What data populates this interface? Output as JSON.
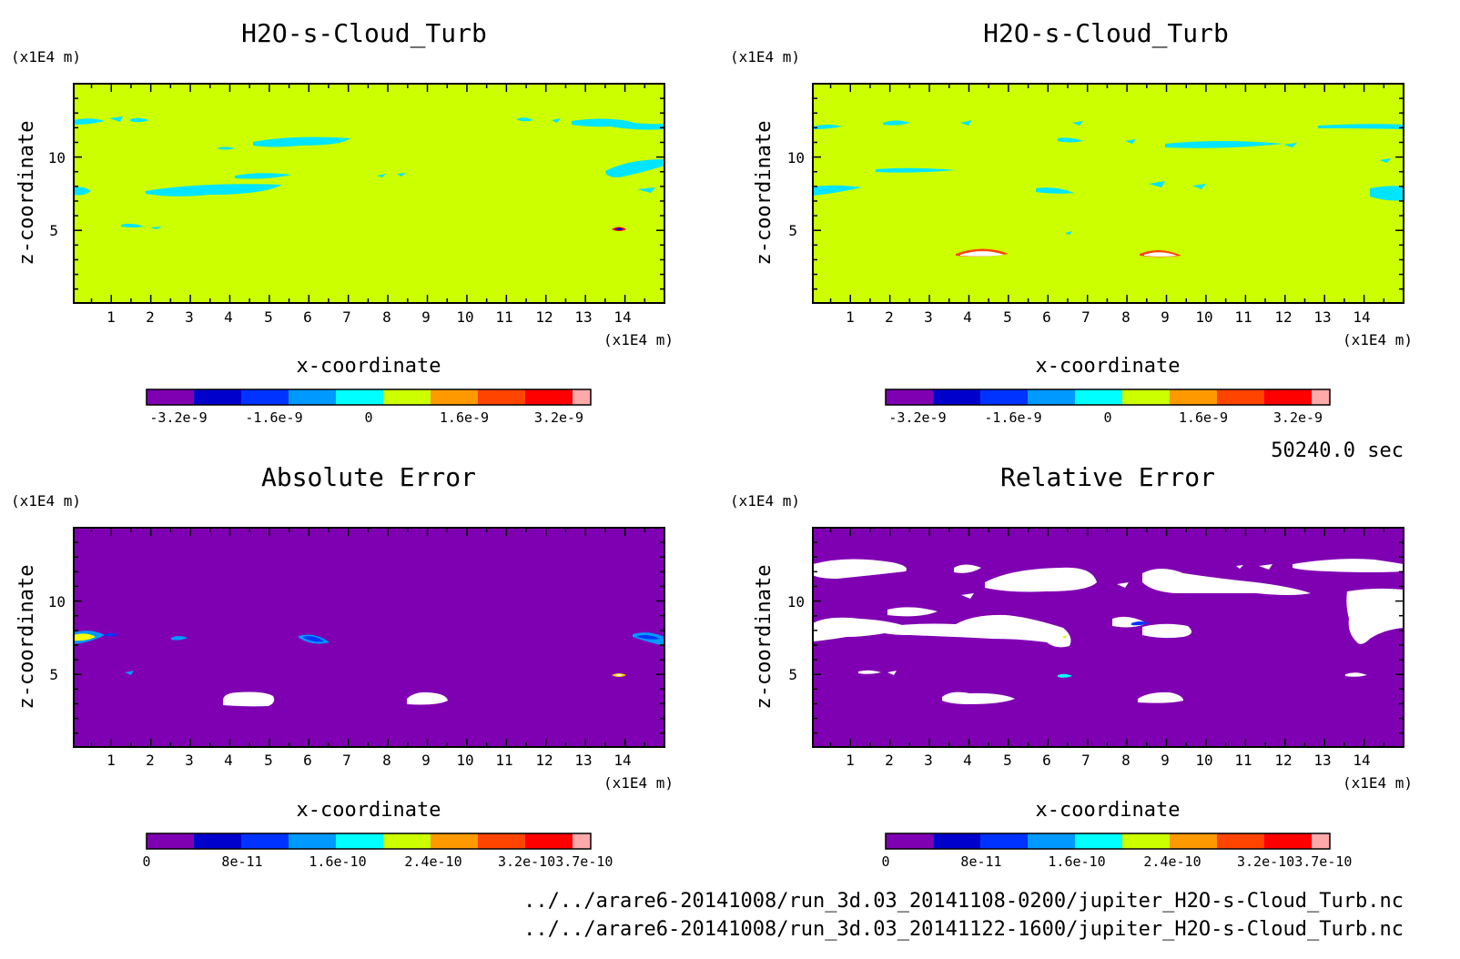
{
  "colorbar_colors": [
    "#7f00b2",
    "#0000cc",
    "#0033ff",
    "#0099ff",
    "#00ffff",
    "#ccff00",
    "#ff9900",
    "#ff4400",
    "#ff0000",
    "#ffaaaa"
  ],
  "field_color": "#ccff00",
  "error_background": "#7f00b2",
  "time_label": "50240.0 sec",
  "footer": {
    "line1": "../../arare6-20141008/run_3d.03_20141108-0200/jupiter_H2O-s-Cloud_Turb.nc",
    "line2": "../../arare6-20141008/run_3d.03_20141122-1600/jupiter_H2O-s-Cloud_Turb.nc"
  },
  "chart_data": [
    {
      "type": "heatmap",
      "title": "H2O-s-Cloud_Turb",
      "xlabel": "x-coordinate",
      "ylabel": "z-coordinate",
      "x_unit": "(x1E4 m)",
      "y_unit": "(x1E4 m)",
      "xlim": [
        0.05,
        15.0
      ],
      "ylim": [
        0.05,
        15.0
      ],
      "x_ticks": [
        "1",
        "2",
        "3",
        "4",
        "5",
        "6",
        "7",
        "8",
        "9",
        "10",
        "11",
        "12",
        "13",
        "14"
      ],
      "y_ticks": [
        "5",
        "10"
      ],
      "colorbar_ticks": [
        "-3.2e-9",
        "-1.6e-9",
        "0",
        "1.6e-9",
        "3.2e-9"
      ],
      "colorbar_range": [
        -4e-09,
        4.4e-09
      ]
    },
    {
      "type": "heatmap",
      "title": "H2O-s-Cloud_Turb",
      "xlabel": "x-coordinate",
      "ylabel": "z-coordinate",
      "x_unit": "(x1E4 m)",
      "y_unit": "(x1E4 m)",
      "xlim": [
        0.05,
        15.0
      ],
      "ylim": [
        0.05,
        15.0
      ],
      "x_ticks": [
        "1",
        "2",
        "3",
        "4",
        "5",
        "6",
        "7",
        "8",
        "9",
        "10",
        "11",
        "12",
        "13",
        "14"
      ],
      "y_ticks": [
        "5",
        "10"
      ],
      "colorbar_ticks": [
        "-3.2e-9",
        "-1.6e-9",
        "0",
        "1.6e-9",
        "3.2e-9"
      ],
      "colorbar_range": [
        -4e-09,
        4.4e-09
      ]
    },
    {
      "type": "heatmap",
      "title": "Absolute Error",
      "xlabel": "x-coordinate",
      "ylabel": "z-coordinate",
      "x_unit": "(x1E4 m)",
      "y_unit": "(x1E4 m)",
      "xlim": [
        0.05,
        15.0
      ],
      "ylim": [
        0.05,
        15.0
      ],
      "x_ticks": [
        "1",
        "2",
        "3",
        "4",
        "5",
        "6",
        "7",
        "8",
        "9",
        "10",
        "11",
        "12",
        "13",
        "14"
      ],
      "y_ticks": [
        "5",
        "10"
      ],
      "colorbar_ticks": [
        "0",
        "8e-11",
        "1.6e-10",
        "2.4e-10",
        "3.2e-103.7e-10"
      ],
      "colorbar_range": [
        0,
        3.7e-10
      ]
    },
    {
      "type": "heatmap",
      "title": "Relative Error",
      "xlabel": "x-coordinate",
      "ylabel": "z-coordinate",
      "x_unit": "(x1E4 m)",
      "y_unit": "(x1E4 m)",
      "xlim": [
        0.05,
        15.0
      ],
      "ylim": [
        0.05,
        15.0
      ],
      "x_ticks": [
        "1",
        "2",
        "3",
        "4",
        "5",
        "6",
        "7",
        "8",
        "9",
        "10",
        "11",
        "12",
        "13",
        "14"
      ],
      "y_ticks": [
        "5",
        "10"
      ],
      "colorbar_ticks": [
        "0",
        "8e-11",
        "1.6e-10",
        "2.4e-10",
        "3.2e-103.7e-10"
      ],
      "colorbar_range": [
        0,
        3.7e-10
      ]
    }
  ]
}
